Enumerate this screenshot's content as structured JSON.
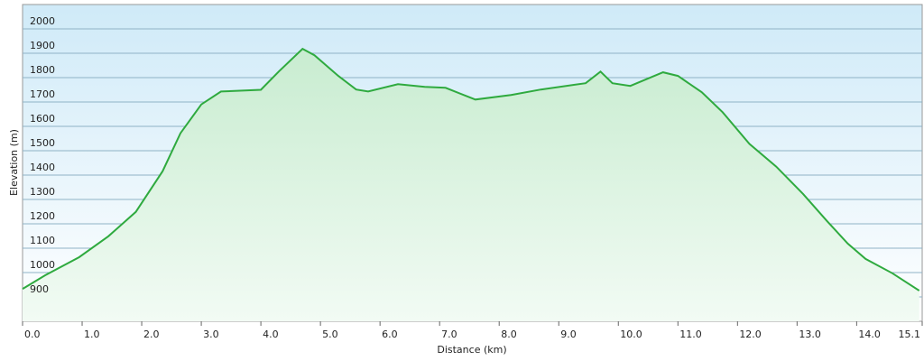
{
  "chart_data": {
    "type": "area",
    "x_label": "Distance  (km)",
    "y_label": "Elevation (m)",
    "x": [
      0,
      0.38,
      0.95,
      1.44,
      1.9,
      2.35,
      2.65,
      3.0,
      3.33,
      4.0,
      4.3,
      4.7,
      4.9,
      5.3,
      5.6,
      5.8,
      6.3,
      6.75,
      7.1,
      7.6,
      8.2,
      8.7,
      9.45,
      9.7,
      9.9,
      10.2,
      10.75,
      11.0,
      11.4,
      11.75,
      12.2,
      12.65,
      13.1,
      13.5,
      13.85,
      14.15,
      14.6,
      15.05
    ],
    "series": [
      {
        "color": "#2faa3f",
        "values": [
          933,
          989,
          1063,
          1149,
          1249,
          1416,
          1572,
          1690,
          1743,
          1750,
          1825,
          1918,
          1892,
          1807,
          1751,
          1743,
          1773,
          1762,
          1758,
          1710,
          1729,
          1751,
          1777,
          1825,
          1777,
          1766,
          1822,
          1807,
          1740,
          1658,
          1528,
          1435,
          1323,
          1212,
          1119,
          1056,
          997,
          926
        ]
      }
    ],
    "xlim": [
      0,
      15.1
    ],
    "xticks": [
      {
        "value": 0,
        "label": "0.0"
      },
      {
        "value": 1,
        "label": "1.0"
      },
      {
        "value": 2,
        "label": "2.0"
      },
      {
        "value": 3,
        "label": "3.0"
      },
      {
        "value": 4,
        "label": "4.0"
      },
      {
        "value": 5,
        "label": "5.0"
      },
      {
        "value": 6,
        "label": "6.0"
      },
      {
        "value": 7,
        "label": "7.0"
      },
      {
        "value": 8,
        "label": "8.0"
      },
      {
        "value": 9,
        "label": "9.0"
      },
      {
        "value": 10,
        "label": "10.0"
      },
      {
        "value": 11,
        "label": "11.0"
      },
      {
        "value": 12,
        "label": "12.0"
      },
      {
        "value": 13,
        "label": "13.0"
      },
      {
        "value": 14,
        "label": "14.0"
      },
      15.1
    ],
    "ylim": [
      800,
      2100
    ],
    "yticks": [
      900,
      1000,
      1100,
      1200,
      1300,
      1400,
      1500,
      1600,
      1700,
      1800,
      1900,
      2000
    ],
    "grid": true
  }
}
